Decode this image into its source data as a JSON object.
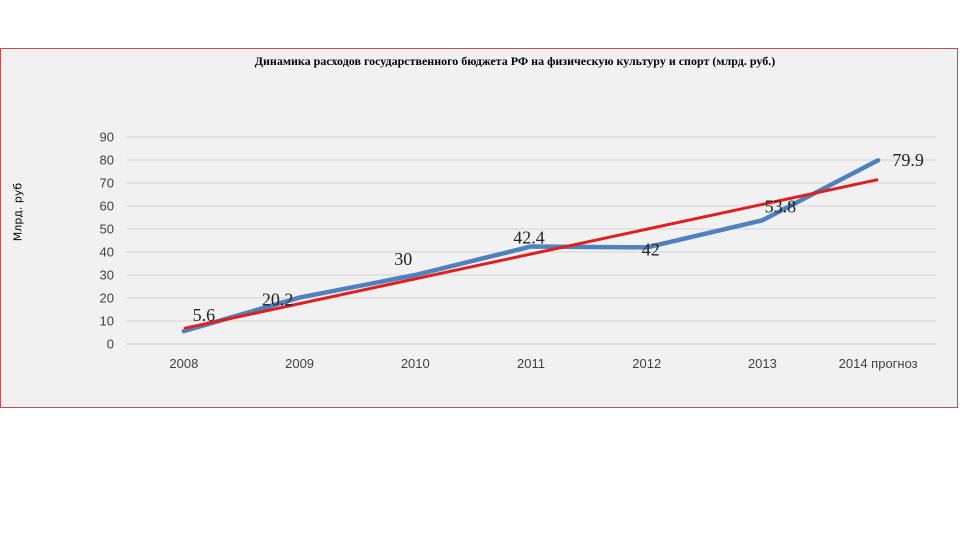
{
  "chart_data": {
    "type": "line",
    "title": "Динамика расходов государственного бюджета РФ на физическую культуру и спорт (млрд. руб.)",
    "ylabel": "Млрд. руб",
    "xlabel": "",
    "categories": [
      "2008",
      "2009",
      "2010",
      "2011",
      "2012",
      "2013",
      "2014 прогноз"
    ],
    "series": [
      {
        "values": [
          5.6,
          20.2,
          30,
          42.4,
          42,
          53.8,
          79.9
        ],
        "data_labels": [
          "5.6",
          "20.2",
          "30",
          "42.4",
          "42",
          "53.8",
          "79.9"
        ],
        "color": "#4f81bd"
      }
    ],
    "trendline": {
      "type": "linear",
      "color": "#e02020"
    },
    "ylim": [
      0,
      90
    ],
    "yticks": [
      0,
      10,
      20,
      30,
      40,
      50,
      60,
      70,
      80,
      90
    ],
    "grid": true,
    "legend": "none"
  }
}
